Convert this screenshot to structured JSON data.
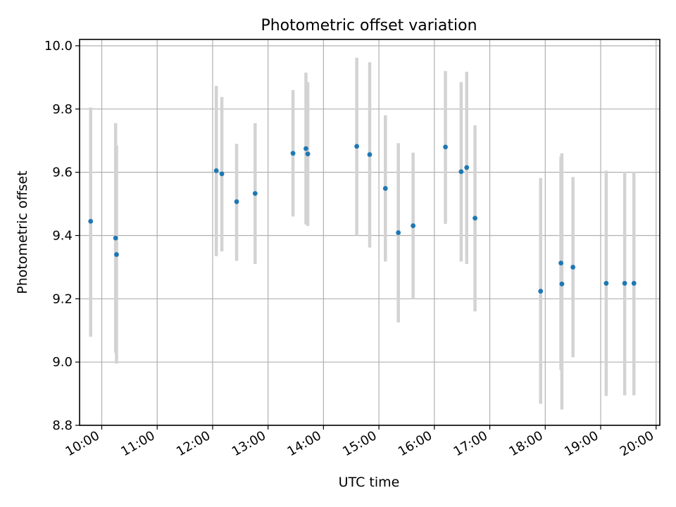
{
  "chart_data": {
    "type": "scatter",
    "title": "Photometric offset variation",
    "xlabel": "UTC time",
    "ylabel": "Photometric offset",
    "xlim": [
      "09:36",
      "20:04"
    ],
    "ylim": [
      8.8,
      10.02
    ],
    "x_ticks": [
      "10:00",
      "11:00",
      "12:00",
      "13:00",
      "14:00",
      "15:00",
      "16:00",
      "17:00",
      "18:00",
      "19:00",
      "20:00"
    ],
    "y_ticks": [
      "8.8",
      "9.0",
      "9.2",
      "9.4",
      "9.6",
      "9.8",
      "10.0"
    ],
    "grid": true,
    "marker_color": "#1f77b4",
    "errorbar_color": "#d3d3d3",
    "points": [
      {
        "t": "09:48",
        "y": 9.445,
        "low": 9.08,
        "high": 9.805
      },
      {
        "t": "10:15",
        "y": 9.392,
        "low": 9.03,
        "high": 9.755
      },
      {
        "t": "10:16",
        "y": 9.34,
        "low": 8.995,
        "high": 9.685
      },
      {
        "t": "12:04",
        "y": 9.605,
        "low": 9.335,
        "high": 9.873
      },
      {
        "t": "12:10",
        "y": 9.595,
        "low": 9.35,
        "high": 9.838
      },
      {
        "t": "12:26",
        "y": 9.507,
        "low": 9.32,
        "high": 9.69
      },
      {
        "t": "12:46",
        "y": 9.533,
        "low": 9.31,
        "high": 9.755
      },
      {
        "t": "13:27",
        "y": 9.66,
        "low": 9.46,
        "high": 9.86
      },
      {
        "t": "13:41",
        "y": 9.675,
        "low": 9.435,
        "high": 9.915
      },
      {
        "t": "13:43",
        "y": 9.658,
        "low": 9.43,
        "high": 9.885
      },
      {
        "t": "14:36",
        "y": 9.682,
        "low": 9.4,
        "high": 9.962
      },
      {
        "t": "14:50",
        "y": 9.656,
        "low": 9.362,
        "high": 9.948
      },
      {
        "t": "15:07",
        "y": 9.549,
        "low": 9.318,
        "high": 9.78
      },
      {
        "t": "15:21",
        "y": 9.409,
        "low": 9.125,
        "high": 9.692
      },
      {
        "t": "15:37",
        "y": 9.431,
        "low": 9.2,
        "high": 9.662
      },
      {
        "t": "16:12",
        "y": 9.68,
        "low": 9.437,
        "high": 9.92
      },
      {
        "t": "16:29",
        "y": 9.602,
        "low": 9.318,
        "high": 9.885
      },
      {
        "t": "16:35",
        "y": 9.615,
        "low": 9.31,
        "high": 9.918
      },
      {
        "t": "16:44",
        "y": 9.455,
        "low": 9.16,
        "high": 9.748
      },
      {
        "t": "17:55",
        "y": 9.224,
        "low": 8.868,
        "high": 9.582
      },
      {
        "t": "18:17",
        "y": 9.313,
        "low": 8.975,
        "high": 9.65
      },
      {
        "t": "18:18",
        "y": 9.247,
        "low": 8.85,
        "high": 9.66
      },
      {
        "t": "18:30",
        "y": 9.3,
        "low": 9.015,
        "high": 9.585
      },
      {
        "t": "19:06",
        "y": 9.249,
        "low": 8.893,
        "high": 9.605
      },
      {
        "t": "19:26",
        "y": 9.249,
        "low": 8.895,
        "high": 9.602
      },
      {
        "t": "19:36",
        "y": 9.249,
        "low": 8.895,
        "high": 9.602
      }
    ]
  }
}
